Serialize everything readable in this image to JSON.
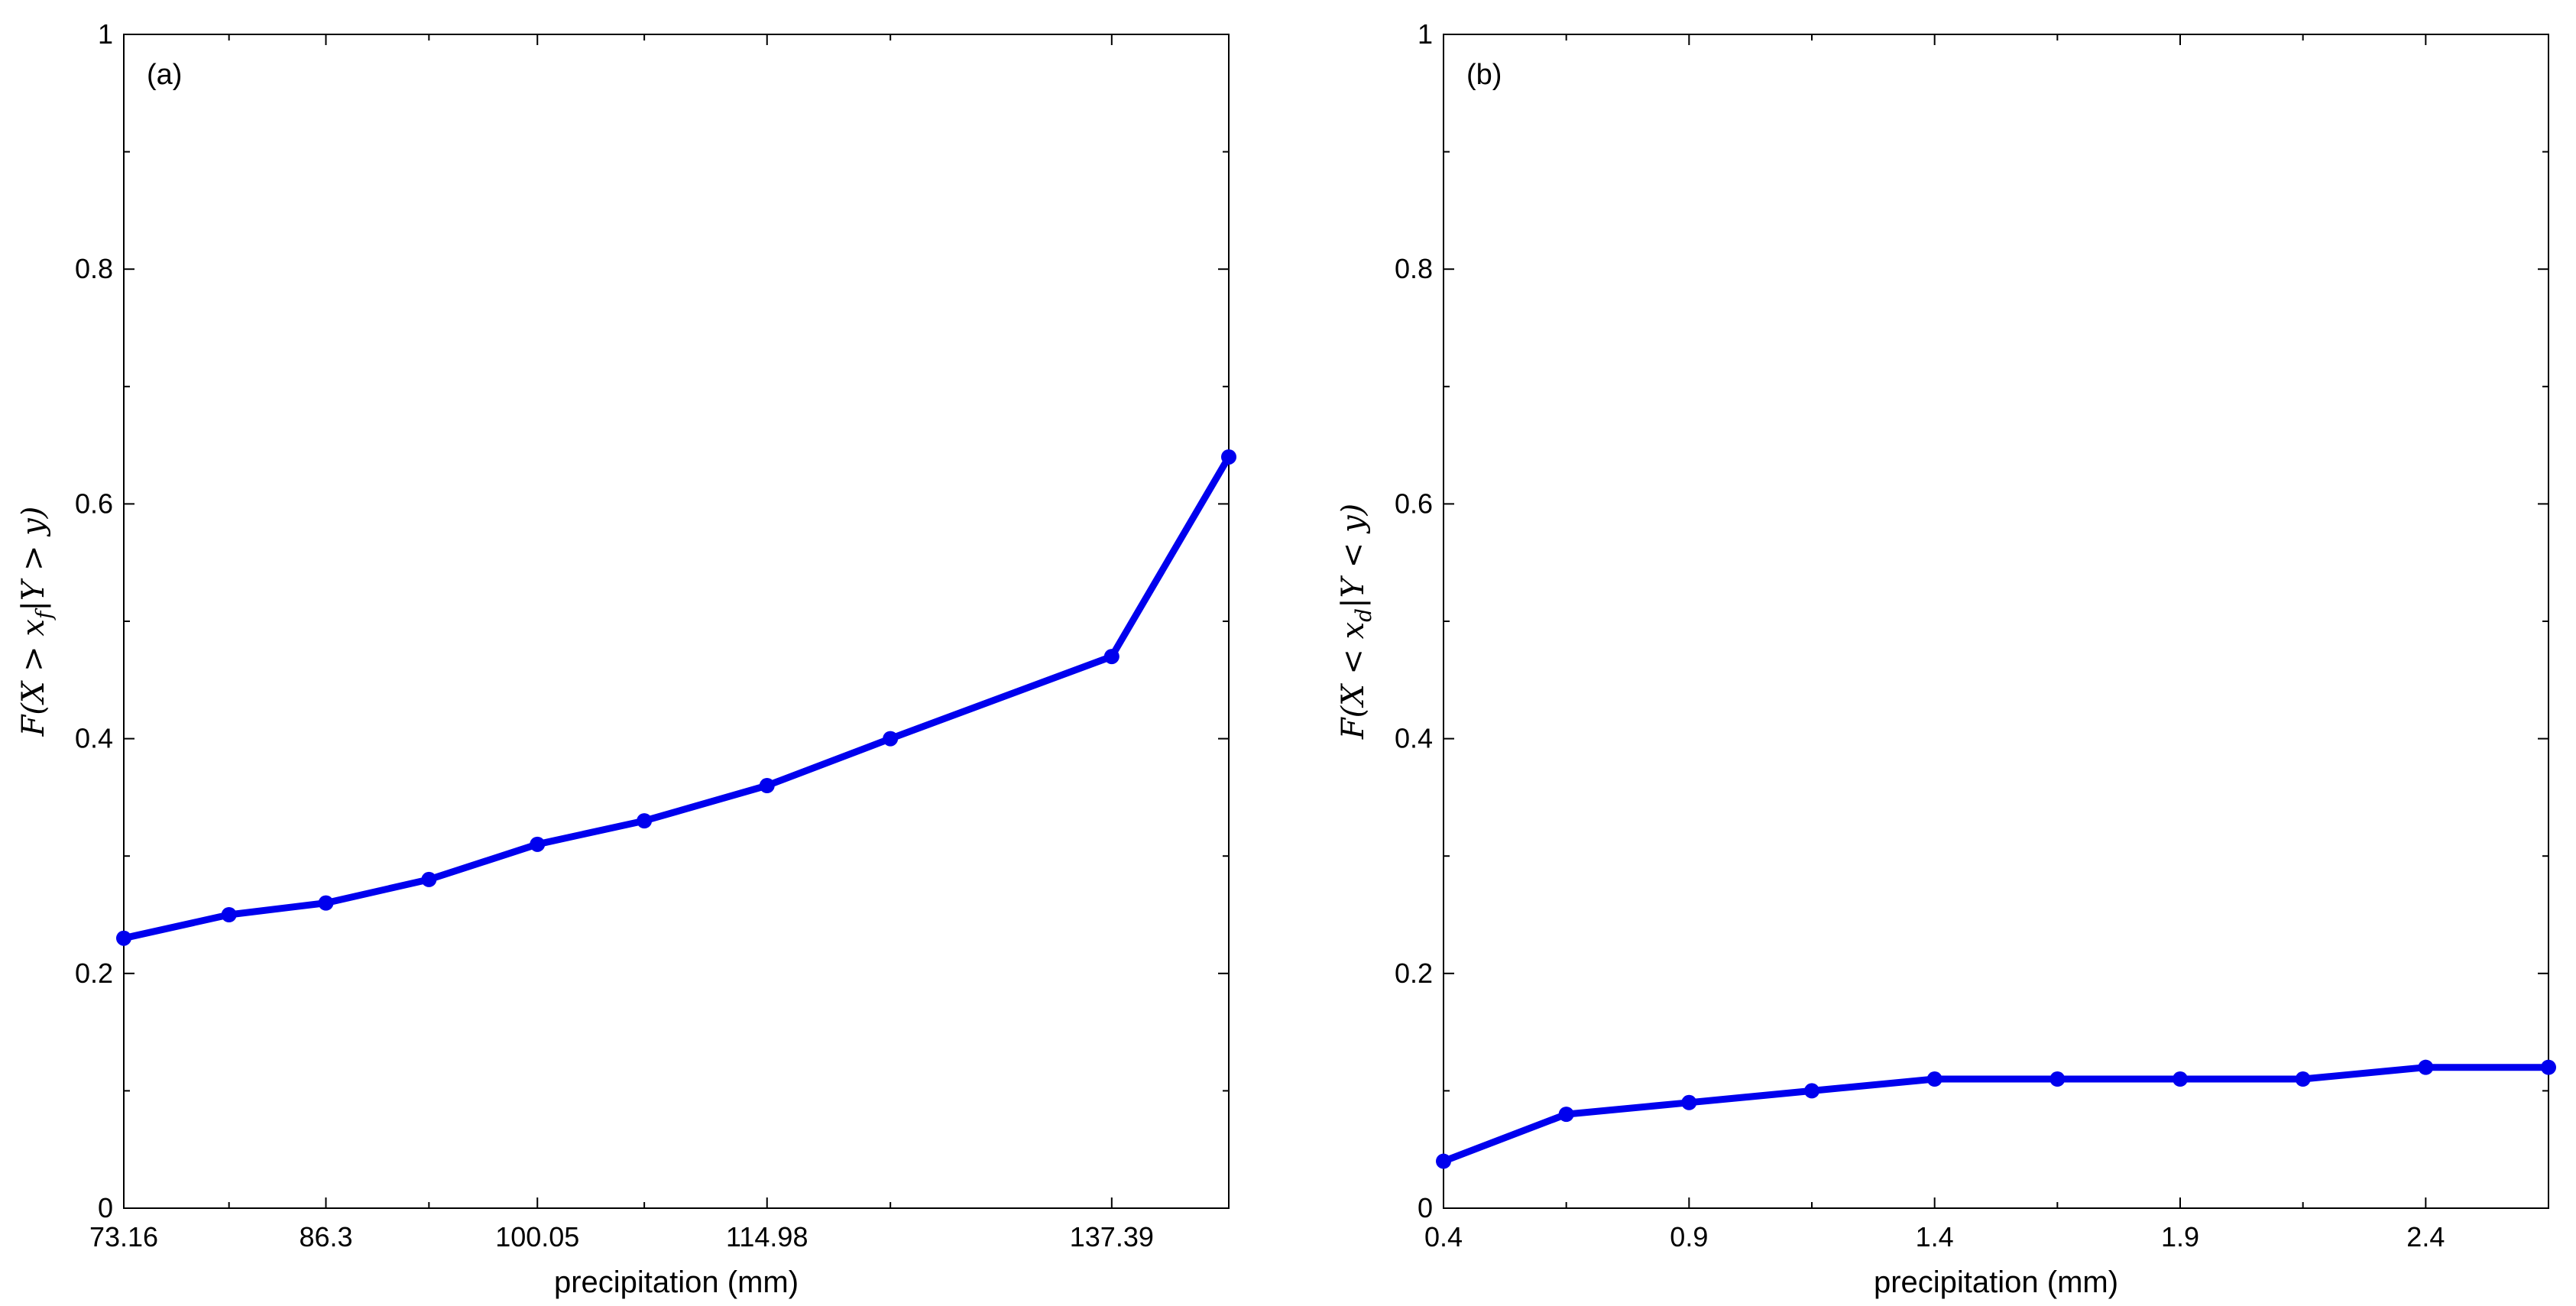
{
  "chart_data": [
    {
      "type": "line",
      "panel_label": "(a)",
      "xlabel": "precipitation (mm)",
      "ylabel": "F(X > x_f | Y > y)",
      "ylabel_parts": {
        "a": "F(X > x",
        "sub": "f",
        "b": "|Y > y)"
      },
      "x_tick_labels": [
        "73.16",
        "86.3",
        "100.05",
        "114.98",
        "137.39"
      ],
      "x": [
        73.16,
        80.0,
        86.3,
        93.0,
        100.05,
        107.0,
        114.98,
        123.0,
        137.39,
        145.0
      ],
      "y_ticks": [
        "0",
        "0.2",
        "0.4",
        "0.6",
        "0.8",
        "1"
      ],
      "ylim": [
        0,
        1
      ],
      "grid": false,
      "series": [
        {
          "color": "#0000ee",
          "values": [
            0.23,
            0.25,
            0.26,
            0.28,
            0.31,
            0.33,
            0.36,
            0.4,
            0.47,
            0.64
          ]
        }
      ]
    },
    {
      "type": "line",
      "panel_label": "(b)",
      "xlabel": "precipitation (mm)",
      "ylabel": "F(X < x_d | Y < y)",
      "ylabel_parts": {
        "a": "F(X < x",
        "sub": "d",
        "b": "|Y < y)"
      },
      "x_tick_labels": [
        "0.4",
        "0.9",
        "1.4",
        "1.9",
        "2.4"
      ],
      "x": [
        0.4,
        0.65,
        0.9,
        1.15,
        1.4,
        1.65,
        1.9,
        2.15,
        2.4,
        2.65
      ],
      "xlim": [
        0.4,
        2.65
      ],
      "y_ticks": [
        "0",
        "0.2",
        "0.4",
        "0.6",
        "0.8",
        "1"
      ],
      "ylim": [
        0,
        1
      ],
      "grid": false,
      "series": [
        {
          "color": "#0000ee",
          "values": [
            0.04,
            0.08,
            0.09,
            0.1,
            0.11,
            0.11,
            0.11,
            0.11,
            0.12,
            0.12
          ]
        }
      ]
    }
  ]
}
